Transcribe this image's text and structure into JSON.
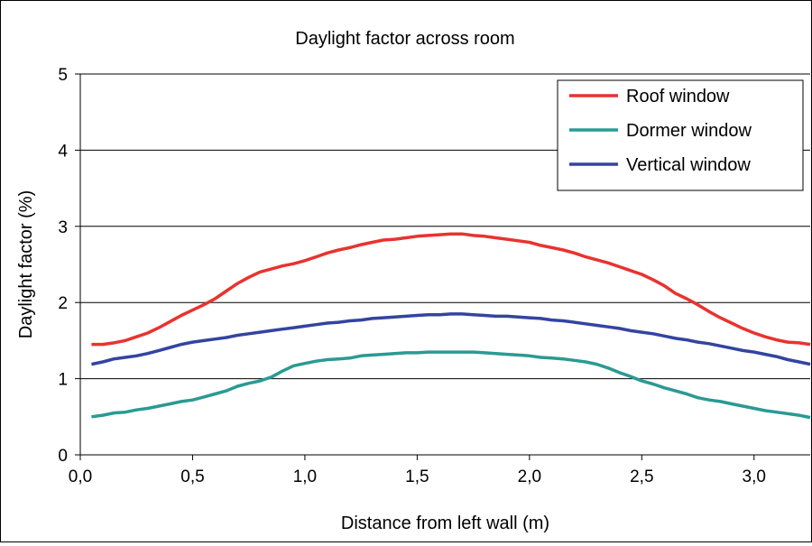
{
  "chart_data": {
    "type": "line",
    "title": "Daylight factor across room",
    "xlabel": "Distance from left wall (m)",
    "ylabel": "Daylight factor (%)",
    "xlim": [
      0,
      3.25
    ],
    "ylim": [
      0,
      5
    ],
    "grid": "horizontal",
    "legend_position": "top-right",
    "x_ticks": [
      0,
      0.5,
      1.0,
      1.5,
      2.0,
      2.5,
      3.0
    ],
    "x_tick_labels": [
      "0,0",
      "0,5",
      "1,0",
      "1,5",
      "2,0",
      "2,5",
      "3,0"
    ],
    "y_ticks": [
      0,
      1,
      2,
      3,
      4,
      5
    ],
    "y_tick_labels": [
      "0",
      "1",
      "2",
      "3",
      "4",
      "5"
    ],
    "series": [
      {
        "name": "Roof window",
        "color": "#e8332f",
        "x": [
          0.05,
          0.1,
          0.15,
          0.2,
          0.25,
          0.3,
          0.35,
          0.4,
          0.45,
          0.5,
          0.55,
          0.6,
          0.65,
          0.7,
          0.75,
          0.8,
          0.85,
          0.9,
          0.95,
          1.0,
          1.05,
          1.1,
          1.15,
          1.2,
          1.25,
          1.3,
          1.35,
          1.4,
          1.45,
          1.5,
          1.55,
          1.6,
          1.65,
          1.7,
          1.75,
          1.8,
          1.85,
          1.9,
          1.95,
          2.0,
          2.05,
          2.1,
          2.15,
          2.2,
          2.25,
          2.3,
          2.35,
          2.4,
          2.45,
          2.5,
          2.55,
          2.6,
          2.65,
          2.7,
          2.75,
          2.8,
          2.85,
          2.9,
          2.95,
          3.0,
          3.05,
          3.1,
          3.15,
          3.2,
          3.25
        ],
        "y": [
          1.45,
          1.45,
          1.47,
          1.5,
          1.55,
          1.6,
          1.67,
          1.75,
          1.83,
          1.9,
          1.97,
          2.05,
          2.15,
          2.25,
          2.33,
          2.4,
          2.44,
          2.48,
          2.51,
          2.55,
          2.6,
          2.65,
          2.69,
          2.72,
          2.76,
          2.79,
          2.82,
          2.83,
          2.85,
          2.87,
          2.88,
          2.89,
          2.9,
          2.9,
          2.88,
          2.87,
          2.85,
          2.83,
          2.81,
          2.79,
          2.75,
          2.72,
          2.69,
          2.65,
          2.6,
          2.56,
          2.52,
          2.47,
          2.42,
          2.37,
          2.3,
          2.22,
          2.12,
          2.05,
          1.97,
          1.88,
          1.8,
          1.73,
          1.66,
          1.6,
          1.55,
          1.51,
          1.48,
          1.47,
          1.45
        ]
      },
      {
        "name": "Dormer window",
        "color": "#2a9a93",
        "x": [
          0.05,
          0.1,
          0.15,
          0.2,
          0.25,
          0.3,
          0.35,
          0.4,
          0.45,
          0.5,
          0.55,
          0.6,
          0.65,
          0.7,
          0.75,
          0.8,
          0.85,
          0.9,
          0.95,
          1.0,
          1.05,
          1.1,
          1.15,
          1.2,
          1.25,
          1.3,
          1.35,
          1.4,
          1.45,
          1.5,
          1.55,
          1.6,
          1.65,
          1.7,
          1.75,
          1.8,
          1.85,
          1.9,
          1.95,
          2.0,
          2.05,
          2.1,
          2.15,
          2.2,
          2.25,
          2.3,
          2.35,
          2.4,
          2.45,
          2.5,
          2.55,
          2.6,
          2.65,
          2.7,
          2.75,
          2.8,
          2.85,
          2.9,
          2.95,
          3.0,
          3.05,
          3.1,
          3.15,
          3.2,
          3.25
        ],
        "y": [
          0.5,
          0.52,
          0.55,
          0.56,
          0.59,
          0.61,
          0.64,
          0.67,
          0.7,
          0.72,
          0.76,
          0.8,
          0.84,
          0.9,
          0.94,
          0.97,
          1.02,
          1.1,
          1.17,
          1.2,
          1.23,
          1.25,
          1.26,
          1.27,
          1.3,
          1.31,
          1.32,
          1.33,
          1.34,
          1.34,
          1.35,
          1.35,
          1.35,
          1.35,
          1.35,
          1.34,
          1.33,
          1.32,
          1.31,
          1.3,
          1.28,
          1.27,
          1.26,
          1.24,
          1.22,
          1.19,
          1.14,
          1.08,
          1.03,
          0.97,
          0.93,
          0.88,
          0.84,
          0.8,
          0.75,
          0.72,
          0.7,
          0.67,
          0.64,
          0.61,
          0.58,
          0.56,
          0.54,
          0.52,
          0.49
        ]
      },
      {
        "name": "Vertical window",
        "color": "#3344a0",
        "x": [
          0.05,
          0.1,
          0.15,
          0.2,
          0.25,
          0.3,
          0.35,
          0.4,
          0.45,
          0.5,
          0.55,
          0.6,
          0.65,
          0.7,
          0.75,
          0.8,
          0.85,
          0.9,
          0.95,
          1.0,
          1.05,
          1.1,
          1.15,
          1.2,
          1.25,
          1.3,
          1.35,
          1.4,
          1.45,
          1.5,
          1.55,
          1.6,
          1.65,
          1.7,
          1.75,
          1.8,
          1.85,
          1.9,
          1.95,
          2.0,
          2.05,
          2.1,
          2.15,
          2.2,
          2.25,
          2.3,
          2.35,
          2.4,
          2.45,
          2.5,
          2.55,
          2.6,
          2.65,
          2.7,
          2.75,
          2.8,
          2.85,
          2.9,
          2.95,
          3.0,
          3.05,
          3.1,
          3.15,
          3.2,
          3.25
        ],
        "y": [
          1.19,
          1.22,
          1.26,
          1.28,
          1.3,
          1.33,
          1.37,
          1.41,
          1.45,
          1.48,
          1.5,
          1.52,
          1.54,
          1.57,
          1.59,
          1.61,
          1.63,
          1.65,
          1.67,
          1.69,
          1.71,
          1.73,
          1.74,
          1.76,
          1.77,
          1.79,
          1.8,
          1.81,
          1.82,
          1.83,
          1.84,
          1.84,
          1.85,
          1.85,
          1.84,
          1.83,
          1.82,
          1.82,
          1.81,
          1.8,
          1.79,
          1.77,
          1.76,
          1.74,
          1.72,
          1.7,
          1.68,
          1.66,
          1.63,
          1.61,
          1.59,
          1.56,
          1.53,
          1.51,
          1.48,
          1.46,
          1.43,
          1.4,
          1.37,
          1.35,
          1.32,
          1.29,
          1.25,
          1.22,
          1.19
        ]
      }
    ]
  }
}
